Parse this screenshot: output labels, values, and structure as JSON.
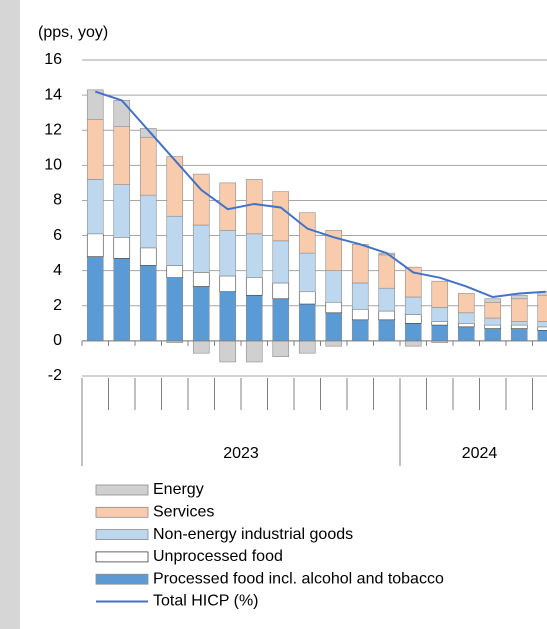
{
  "chart_data": {
    "type": "stacked_bar_line",
    "y_label": "(pps, yoy)",
    "categories": [
      "2023",
      "2023",
      "2023",
      "2023",
      "2023",
      "2023",
      "2023",
      "2023",
      "2023",
      "2023",
      "2023",
      "2023",
      "2024",
      "2024",
      "2024",
      "2024",
      "2024",
      "2024"
    ],
    "ylim": [
      -2,
      16
    ],
    "yticks": [
      -2,
      0,
      2,
      4,
      6,
      8,
      10,
      12,
      14,
      16
    ],
    "grid": true,
    "series": [
      {
        "name": "Processed food incl. alcohol and tobacco",
        "type": "bar",
        "color": "#5b9bd5",
        "values": [
          4.8,
          4.7,
          4.3,
          3.6,
          3.1,
          2.8,
          2.6,
          2.4,
          2.1,
          1.6,
          1.2,
          1.2,
          1.0,
          0.9,
          0.8,
          0.7,
          0.7,
          0.6
        ]
      },
      {
        "name": "Unprocessed food",
        "type": "bar",
        "color": "#ffffff",
        "values": [
          1.3,
          1.2,
          1.0,
          0.7,
          0.8,
          0.9,
          1.0,
          0.9,
          0.7,
          0.6,
          0.6,
          0.5,
          0.5,
          0.2,
          0.2,
          0.2,
          0.2,
          0.2
        ]
      },
      {
        "name": "Non-energy industrial goods",
        "type": "bar",
        "color": "#bdd7ee",
        "values": [
          3.1,
          3.0,
          3.0,
          2.8,
          2.7,
          2.6,
          2.5,
          2.4,
          2.2,
          1.8,
          1.5,
          1.3,
          1.0,
          0.8,
          0.6,
          0.4,
          0.2,
          0.3
        ]
      },
      {
        "name": "Services",
        "type": "bar",
        "color": "#f8cbad",
        "values": [
          3.4,
          3.3,
          3.3,
          3.4,
          2.9,
          2.7,
          3.1,
          2.8,
          2.3,
          2.3,
          2.2,
          1.9,
          1.7,
          1.5,
          1.1,
          0.9,
          1.3,
          1.5
        ]
      },
      {
        "name": "Energy",
        "type": "bar",
        "color": "#d0d0d0",
        "values": [
          1.7,
          1.5,
          0.5,
          -0.1,
          -0.7,
          -1.2,
          -1.2,
          -0.9,
          -0.7,
          -0.3,
          0.0,
          0.1,
          -0.3,
          -0.1,
          0.0,
          0.2,
          0.2,
          0.2
        ]
      },
      {
        "name": "Total HICP (%)",
        "type": "line",
        "color": "#4472c4",
        "values": [
          14.2,
          13.7,
          12.0,
          10.3,
          8.6,
          7.5,
          7.8,
          7.6,
          6.4,
          5.9,
          5.5,
          5.0,
          3.9,
          3.6,
          3.1,
          2.5,
          2.7,
          2.8
        ]
      }
    ]
  }
}
